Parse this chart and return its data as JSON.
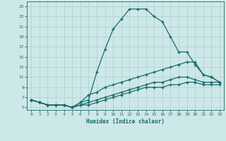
{
  "xlabel": "Humidex (Indice chaleur)",
  "bg_color": "#cde8e8",
  "grid_color": "#b0cccc",
  "line_color": "#1a6b6b",
  "xlim": [
    -0.5,
    23.5
  ],
  "ylim": [
    4.5,
    26
  ],
  "xticks": [
    0,
    1,
    2,
    3,
    4,
    5,
    6,
    7,
    8,
    9,
    10,
    11,
    12,
    13,
    14,
    15,
    16,
    17,
    18,
    19,
    20,
    21,
    22,
    23
  ],
  "yticks": [
    5,
    7,
    9,
    11,
    13,
    15,
    17,
    19,
    21,
    23,
    25
  ],
  "lines": [
    {
      "x": [
        0,
        1,
        2,
        3,
        4,
        5,
        6,
        7,
        8,
        9,
        10,
        11,
        12,
        13,
        14,
        15,
        16,
        17,
        18,
        19,
        20,
        21,
        22,
        23
      ],
      "y": [
        6.5,
        6.0,
        5.5,
        5.5,
        5.5,
        5.0,
        6.0,
        6.5,
        12.0,
        16.5,
        20.5,
        22.5,
        24.5,
        24.5,
        24.5,
        23.0,
        22.0,
        19.0,
        16.0,
        16.0,
        13.5,
        11.5,
        11.0,
        10.0
      ]
    },
    {
      "x": [
        0,
        1,
        2,
        3,
        4,
        5,
        6,
        7,
        8,
        9,
        10,
        11,
        12,
        13,
        14,
        15,
        16,
        17,
        18,
        19,
        20,
        21,
        22,
        23
      ],
      "y": [
        6.5,
        6.0,
        5.5,
        5.5,
        5.5,
        5.0,
        6.0,
        7.5,
        8.0,
        9.0,
        9.5,
        10.0,
        10.5,
        11.0,
        11.5,
        12.0,
        12.5,
        13.0,
        13.5,
        14.0,
        14.0,
        11.5,
        11.0,
        10.0
      ]
    },
    {
      "x": [
        0,
        1,
        2,
        3,
        4,
        5,
        6,
        7,
        8,
        9,
        10,
        11,
        12,
        13,
        14,
        15,
        16,
        17,
        18,
        19,
        20,
        21,
        22,
        23
      ],
      "y": [
        6.5,
        6.0,
        5.5,
        5.5,
        5.5,
        5.0,
        5.5,
        6.0,
        6.5,
        7.0,
        7.5,
        8.0,
        8.5,
        9.0,
        9.5,
        10.0,
        10.0,
        10.5,
        11.0,
        11.0,
        10.5,
        10.0,
        10.0,
        10.0
      ]
    },
    {
      "x": [
        0,
        1,
        2,
        3,
        4,
        5,
        6,
        7,
        8,
        9,
        10,
        11,
        12,
        13,
        14,
        15,
        16,
        17,
        18,
        19,
        20,
        21,
        22,
        23
      ],
      "y": [
        6.5,
        6.0,
        5.5,
        5.5,
        5.5,
        5.0,
        5.5,
        5.5,
        6.0,
        6.5,
        7.0,
        7.5,
        8.0,
        8.5,
        9.0,
        9.0,
        9.0,
        9.5,
        9.5,
        10.0,
        10.0,
        9.5,
        9.5,
        9.5
      ]
    }
  ]
}
